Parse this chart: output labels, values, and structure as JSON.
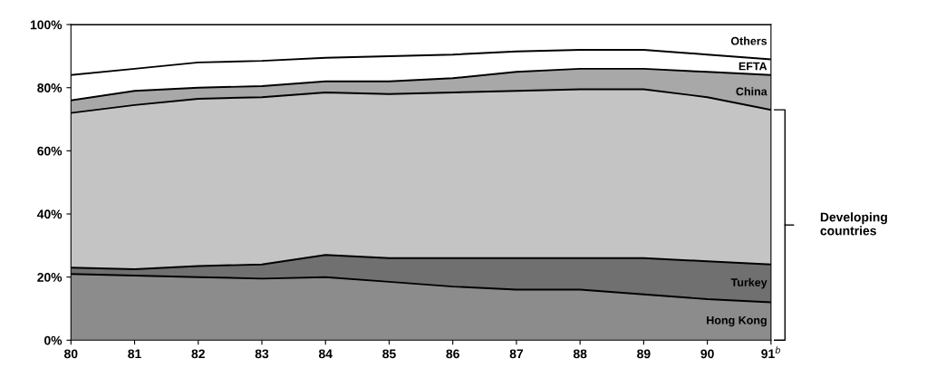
{
  "chart_data": {
    "type": "area",
    "stacked": true,
    "categories": [
      "80",
      "81",
      "82",
      "83",
      "84",
      "85",
      "86",
      "87",
      "88",
      "89",
      "90",
      "91$^{b}$"
    ],
    "series": [
      {
        "name": "Hong Kong",
        "color": "#8c8c8c",
        "values": [
          21,
          20.5,
          20,
          19.5,
          20,
          18.5,
          17,
          16,
          16,
          14.5,
          13,
          12
        ]
      },
      {
        "name": "Turkey",
        "color": "#707070",
        "values": [
          2,
          2,
          3.5,
          4.5,
          7,
          7.5,
          9,
          10,
          10,
          11.5,
          12,
          12
        ]
      },
      {
        "color": "#c4c4c4",
        "values": [
          49,
          52,
          53,
          53,
          51.5,
          52,
          52.5,
          53,
          53.5,
          53.5,
          52,
          49
        ]
      },
      {
        "name": "China",
        "color": "#a8a8a8",
        "values": [
          4,
          4.5,
          3.5,
          3.5,
          3.5,
          4,
          4.5,
          6,
          6.5,
          6.5,
          8,
          11
        ]
      },
      {
        "name": "EFTA",
        "color": "#ffffff",
        "values": [
          8,
          7,
          8,
          8,
          7.5,
          8,
          7.5,
          6.5,
          6,
          6,
          5.5,
          5
        ]
      },
      {
        "name": "Others",
        "color": "#ffffff",
        "values": [
          16,
          14,
          12,
          11.5,
          10.5,
          10,
          9.5,
          8.5,
          8,
          8,
          9.5,
          11
        ]
      }
    ],
    "ylim": [
      0,
      100
    ],
    "yticks": [
      {
        "value": 0,
        "label": "0%"
      },
      {
        "value": 20,
        "label": "20%"
      },
      {
        "value": 40,
        "label": "40%"
      },
      {
        "value": 60,
        "label": "60%"
      },
      {
        "value": 80,
        "label": "80%"
      },
      {
        "value": 100,
        "label": "100%"
      }
    ],
    "annotations": [
      "Developing countries"
    ],
    "legend": false,
    "grid": false
  }
}
